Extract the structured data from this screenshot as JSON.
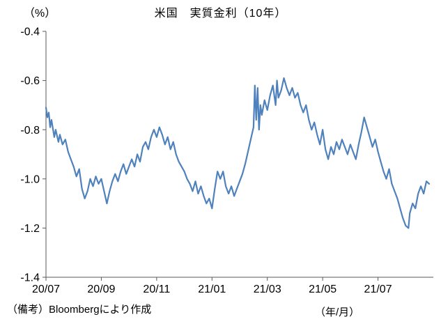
{
  "header": {
    "y_unit": "（%）",
    "title": "米国　実質金利（10年）"
  },
  "footer": {
    "source": "（備考）Bloombergにより作成",
    "x_unit": "（年/月）"
  },
  "chart_data": {
    "type": "line",
    "title": "米国　実質金利（10年）",
    "ylabel": "(%)",
    "xlabel": "(年/月)",
    "ylim": [
      -1.4,
      -0.4
    ],
    "xlim": [
      0,
      14
    ],
    "y_ticks": [
      -0.4,
      -0.6,
      -0.8,
      -1.0,
      -1.2,
      -1.4
    ],
    "x_ticks": [
      {
        "pos": 0,
        "label": "20/07"
      },
      {
        "pos": 2,
        "label": "20/09"
      },
      {
        "pos": 4,
        "label": "20/11"
      },
      {
        "pos": 6,
        "label": "21/01"
      },
      {
        "pos": 8,
        "label": "21/03"
      },
      {
        "pos": 10,
        "label": "21/05"
      },
      {
        "pos": 12,
        "label": "21/07"
      }
    ],
    "grid": false,
    "legend": "none",
    "line_color": "#4F81BD",
    "axis_color": "#595959",
    "series": [
      {
        "name": "米国 実質金利(10年)",
        "x_unit_note": "months since 2020/07",
        "points": [
          [
            0.0,
            -0.71
          ],
          [
            0.05,
            -0.75
          ],
          [
            0.1,
            -0.73
          ],
          [
            0.15,
            -0.79
          ],
          [
            0.2,
            -0.76
          ],
          [
            0.3,
            -0.83
          ],
          [
            0.35,
            -0.8
          ],
          [
            0.45,
            -0.85
          ],
          [
            0.5,
            -0.82
          ],
          [
            0.6,
            -0.86
          ],
          [
            0.7,
            -0.84
          ],
          [
            0.8,
            -0.89
          ],
          [
            0.9,
            -0.92
          ],
          [
            1.0,
            -0.95
          ],
          [
            1.1,
            -0.99
          ],
          [
            1.2,
            -0.96
          ],
          [
            1.3,
            -1.04
          ],
          [
            1.4,
            -1.08
          ],
          [
            1.5,
            -1.05
          ],
          [
            1.6,
            -1.0
          ],
          [
            1.7,
            -1.03
          ],
          [
            1.8,
            -0.99
          ],
          [
            1.9,
            -1.02
          ],
          [
            2.0,
            -1.0
          ],
          [
            2.1,
            -1.05
          ],
          [
            2.2,
            -1.1
          ],
          [
            2.3,
            -1.05
          ],
          [
            2.4,
            -1.01
          ],
          [
            2.5,
            -0.98
          ],
          [
            2.6,
            -1.01
          ],
          [
            2.7,
            -0.97
          ],
          [
            2.8,
            -0.94
          ],
          [
            2.9,
            -0.98
          ],
          [
            3.0,
            -0.95
          ],
          [
            3.1,
            -0.92
          ],
          [
            3.2,
            -0.95
          ],
          [
            3.3,
            -0.9
          ],
          [
            3.4,
            -0.93
          ],
          [
            3.5,
            -0.87
          ],
          [
            3.6,
            -0.85
          ],
          [
            3.7,
            -0.88
          ],
          [
            3.8,
            -0.83
          ],
          [
            3.9,
            -0.8
          ],
          [
            4.0,
            -0.83
          ],
          [
            4.1,
            -0.79
          ],
          [
            4.2,
            -0.82
          ],
          [
            4.3,
            -0.86
          ],
          [
            4.4,
            -0.83
          ],
          [
            4.5,
            -0.88
          ],
          [
            4.6,
            -0.85
          ],
          [
            4.7,
            -0.9
          ],
          [
            4.8,
            -0.93
          ],
          [
            4.9,
            -0.95
          ],
          [
            5.0,
            -0.97
          ],
          [
            5.1,
            -1.0
          ],
          [
            5.2,
            -1.02
          ],
          [
            5.3,
            -1.05
          ],
          [
            5.4,
            -1.01
          ],
          [
            5.5,
            -1.06
          ],
          [
            5.6,
            -1.03
          ],
          [
            5.7,
            -1.07
          ],
          [
            5.8,
            -1.1
          ],
          [
            5.9,
            -1.08
          ],
          [
            6.0,
            -1.12
          ],
          [
            6.1,
            -1.04
          ],
          [
            6.2,
            -0.97
          ],
          [
            6.3,
            -1.0
          ],
          [
            6.4,
            -0.97
          ],
          [
            6.5,
            -1.03
          ],
          [
            6.6,
            -1.06
          ],
          [
            6.7,
            -1.03
          ],
          [
            6.8,
            -1.07
          ],
          [
            6.9,
            -1.04
          ],
          [
            7.0,
            -1.01
          ],
          [
            7.1,
            -0.98
          ],
          [
            7.2,
            -0.94
          ],
          [
            7.3,
            -0.89
          ],
          [
            7.4,
            -0.84
          ],
          [
            7.5,
            -0.79
          ],
          [
            7.55,
            -0.62
          ],
          [
            7.6,
            -0.76
          ],
          [
            7.65,
            -0.63
          ],
          [
            7.7,
            -0.8
          ],
          [
            7.75,
            -0.7
          ],
          [
            7.8,
            -0.74
          ],
          [
            7.9,
            -0.68
          ],
          [
            8.0,
            -0.72
          ],
          [
            8.1,
            -0.66
          ],
          [
            8.2,
            -0.62
          ],
          [
            8.3,
            -0.7
          ],
          [
            8.35,
            -0.6
          ],
          [
            8.4,
            -0.67
          ],
          [
            8.5,
            -0.64
          ],
          [
            8.6,
            -0.59
          ],
          [
            8.7,
            -0.63
          ],
          [
            8.8,
            -0.66
          ],
          [
            8.9,
            -0.63
          ],
          [
            9.0,
            -0.67
          ],
          [
            9.1,
            -0.65
          ],
          [
            9.2,
            -0.7
          ],
          [
            9.3,
            -0.73
          ],
          [
            9.4,
            -0.7
          ],
          [
            9.5,
            -0.76
          ],
          [
            9.6,
            -0.8
          ],
          [
            9.7,
            -0.77
          ],
          [
            9.8,
            -0.82
          ],
          [
            9.9,
            -0.86
          ],
          [
            10.0,
            -0.8
          ],
          [
            10.1,
            -0.88
          ],
          [
            10.2,
            -0.92
          ],
          [
            10.3,
            -0.87
          ],
          [
            10.4,
            -0.9
          ],
          [
            10.5,
            -0.85
          ],
          [
            10.6,
            -0.88
          ],
          [
            10.7,
            -0.84
          ],
          [
            10.8,
            -0.87
          ],
          [
            10.9,
            -0.9
          ],
          [
            11.0,
            -0.86
          ],
          [
            11.1,
            -0.89
          ],
          [
            11.2,
            -0.92
          ],
          [
            11.3,
            -0.86
          ],
          [
            11.4,
            -0.81
          ],
          [
            11.5,
            -0.75
          ],
          [
            11.6,
            -0.79
          ],
          [
            11.7,
            -0.83
          ],
          [
            11.8,
            -0.87
          ],
          [
            11.9,
            -0.84
          ],
          [
            12.0,
            -0.89
          ],
          [
            12.1,
            -0.93
          ],
          [
            12.2,
            -0.97
          ],
          [
            12.3,
            -1.0
          ],
          [
            12.4,
            -0.96
          ],
          [
            12.5,
            -1.02
          ],
          [
            12.6,
            -1.05
          ],
          [
            12.7,
            -1.08
          ],
          [
            12.8,
            -1.12
          ],
          [
            12.9,
            -1.16
          ],
          [
            13.0,
            -1.19
          ],
          [
            13.1,
            -1.2
          ],
          [
            13.15,
            -1.14
          ],
          [
            13.25,
            -1.1
          ],
          [
            13.35,
            -1.12
          ],
          [
            13.45,
            -1.06
          ],
          [
            13.55,
            -1.03
          ],
          [
            13.65,
            -1.06
          ],
          [
            13.75,
            -1.01
          ],
          [
            13.85,
            -1.02
          ]
        ]
      }
    ]
  }
}
